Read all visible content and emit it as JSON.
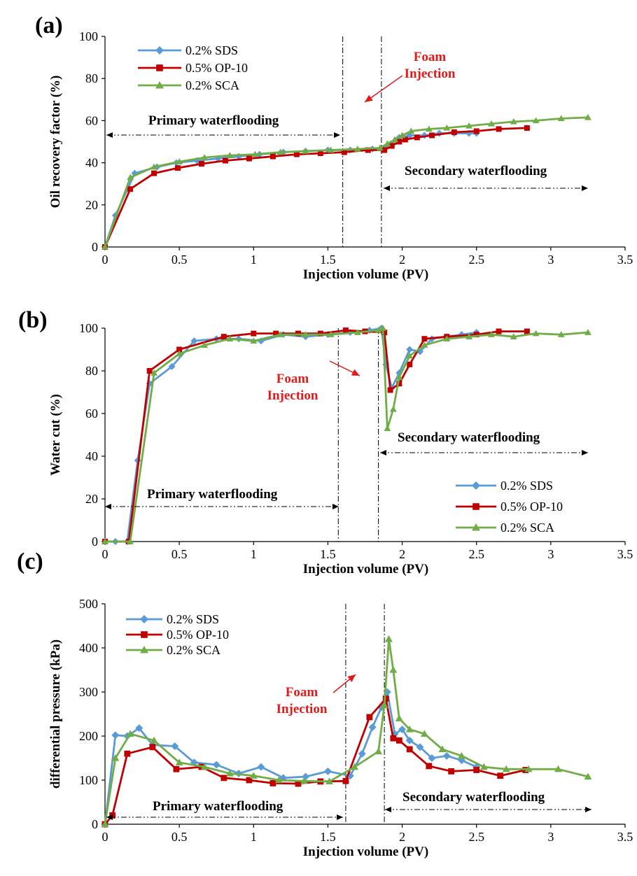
{
  "colors": {
    "SDS": "#5b9bd5",
    "OP-10": "#c00000",
    "SCA": "#70ad47",
    "annotation": "#e01b1b"
  },
  "chart_data": [
    {
      "type": "line",
      "panel_label": "(a)",
      "xlabel": "Injection volume (PV)",
      "ylabel": "Oil recovery factor (%)",
      "xlim": [
        0,
        3.5
      ],
      "ylim": [
        0,
        100
      ],
      "xticks": [
        "0",
        "0.5",
        "1",
        "1.5",
        "2",
        "2.5",
        "3",
        "3.5"
      ],
      "yticks": [
        "0",
        "20",
        "40",
        "60",
        "80",
        "100"
      ],
      "legend_position": "top-left",
      "vlines": [
        1.6,
        1.86
      ],
      "annotations": {
        "foam": [
          "Foam",
          "Injection"
        ],
        "primary": "Primary waterflooding",
        "secondary": "Secondary waterflooding"
      },
      "series": [
        {
          "name": "0.2% SDS",
          "key": "SDS",
          "marker": "diamond",
          "x": [
            0,
            0.07,
            0.2,
            0.35,
            0.48,
            0.62,
            0.76,
            0.9,
            1.04,
            1.2,
            1.35,
            1.5,
            1.65,
            1.8,
            1.88,
            1.93,
            1.98,
            2.05,
            2.15,
            2.25,
            2.35,
            2.45,
            2.5
          ],
          "y": [
            0,
            15,
            35,
            38,
            40,
            41,
            42,
            43,
            44,
            45,
            45.5,
            46,
            46,
            46.5,
            47,
            49,
            52,
            53,
            53,
            54,
            54,
            54,
            54
          ]
        },
        {
          "name": "0.5% OP-10",
          "key": "OP-10",
          "marker": "square",
          "x": [
            0,
            0.17,
            0.33,
            0.49,
            0.65,
            0.81,
            0.97,
            1.13,
            1.29,
            1.45,
            1.61,
            1.77,
            1.88,
            1.93,
            1.98,
            2.02,
            2.1,
            2.2,
            2.35,
            2.5,
            2.65,
            2.84
          ],
          "y": [
            0,
            27.5,
            35,
            37.5,
            39.5,
            41,
            42,
            43,
            44,
            44.5,
            45,
            46,
            46,
            48,
            50,
            51,
            52,
            53,
            54.5,
            55,
            56,
            56.5
          ]
        },
        {
          "name": "0.2% SCA",
          "key": "SCA",
          "marker": "triangle",
          "x": [
            0,
            0.17,
            0.33,
            0.5,
            0.67,
            0.84,
            1.01,
            1.18,
            1.35,
            1.52,
            1.7,
            1.85,
            1.9,
            1.95,
            2.0,
            2.06,
            2.18,
            2.3,
            2.45,
            2.6,
            2.75,
            2.9,
            3.07,
            3.25
          ],
          "y": [
            0,
            33,
            38,
            40.5,
            42.5,
            43.5,
            44,
            45,
            45.5,
            46,
            46.5,
            47,
            49,
            51,
            53,
            55,
            56,
            56.5,
            57.5,
            58.5,
            59.5,
            60,
            61,
            61.5
          ]
        }
      ]
    },
    {
      "type": "line",
      "panel_label": "(b)",
      "xlabel": "Injection volume (PV)",
      "ylabel": "Water cut (%)",
      "xlim": [
        0,
        3.5
      ],
      "ylim": [
        0,
        100
      ],
      "xticks": [
        "0",
        "0.5",
        "1",
        "1.5",
        "2",
        "2.5",
        "3",
        "3.5"
      ],
      "yticks": [
        "0",
        "20",
        "40",
        "60",
        "80",
        "100"
      ],
      "legend_position": "bottom-right",
      "vlines": [
        1.57,
        1.84
      ],
      "annotations": {
        "foam": [
          "Foam",
          "Injection"
        ],
        "primary": "Primary waterflooding",
        "secondary": "Secondary waterflooding"
      },
      "series": [
        {
          "name": "0.2% SDS",
          "key": "SDS",
          "marker": "diamond",
          "x": [
            0,
            0.07,
            0.15,
            0.22,
            0.3,
            0.45,
            0.6,
            0.75,
            0.9,
            1.05,
            1.2,
            1.35,
            1.5,
            1.65,
            1.78,
            1.86,
            1.89,
            1.93,
            1.98,
            2.05,
            2.12,
            2.2,
            2.3,
            2.4,
            2.5
          ],
          "y": [
            0,
            0,
            0,
            38,
            74,
            82,
            94,
            95,
            95,
            94,
            97,
            96,
            97,
            98,
            99,
            100,
            83,
            72,
            79,
            90,
            89,
            95,
            96,
            97,
            98
          ]
        },
        {
          "name": "0.5% OP-10",
          "key": "OP-10",
          "marker": "square",
          "x": [
            0,
            0.16,
            0.3,
            0.5,
            0.8,
            1.0,
            1.15,
            1.3,
            1.45,
            1.62,
            1.75,
            1.88,
            1.92,
            1.98,
            2.05,
            2.15,
            2.3,
            2.5,
            2.65,
            2.84
          ],
          "y": [
            0,
            0,
            80,
            90,
            96,
            97.5,
            97.5,
            97.5,
            97.5,
            99,
            98.5,
            98,
            71,
            74,
            83,
            95,
            96,
            97,
            98.5,
            98.5
          ]
        },
        {
          "name": "0.2% SCA",
          "key": "SCA",
          "marker": "triangle",
          "x": [
            0,
            0.17,
            0.33,
            0.5,
            0.67,
            0.84,
            1.0,
            1.18,
            1.35,
            1.52,
            1.7,
            1.84,
            1.87,
            1.9,
            1.94,
            1.98,
            2.05,
            2.15,
            2.3,
            2.45,
            2.6,
            2.75,
            2.9,
            3.07,
            3.25
          ],
          "y": [
            0,
            0,
            79,
            88,
            92,
            95,
            94,
            97,
            97,
            97,
            98,
            99,
            100,
            53,
            62,
            77,
            87,
            92,
            95,
            96,
            97,
            96,
            97.5,
            97,
            98
          ]
        }
      ]
    },
    {
      "type": "line",
      "panel_label": "(c)",
      "xlabel": "Injection volume (PV)",
      "ylabel": "differential pressure (kPa)",
      "xlim": [
        0,
        3.5
      ],
      "ylim": [
        0,
        500
      ],
      "xticks": [
        "0",
        "0.5",
        "1",
        "1.5",
        "2",
        "2.5",
        "3",
        "3.5"
      ],
      "yticks": [
        "0",
        "100",
        "200",
        "300",
        "400",
        "500"
      ],
      "legend_position": "top-left",
      "vlines": [
        1.62,
        1.88
      ],
      "annotations": {
        "foam": [
          "Foam",
          "Injection"
        ],
        "primary": "Primary waterflooding",
        "secondary": "Secondary waterflooding"
      },
      "series": [
        {
          "name": "0.2% SDS",
          "key": "SDS",
          "marker": "diamond",
          "x": [
            0,
            0.07,
            0.15,
            0.23,
            0.32,
            0.47,
            0.6,
            0.75,
            0.9,
            1.05,
            1.2,
            1.35,
            1.5,
            1.65,
            1.73,
            1.8,
            1.86,
            1.9,
            1.95,
            2.0,
            2.05,
            2.12,
            2.2,
            2.3,
            2.4,
            2.5
          ],
          "y": [
            0,
            202,
            200,
            218,
            180,
            177,
            140,
            135,
            115,
            130,
            105,
            108,
            120,
            110,
            160,
            220,
            265,
            300,
            205,
            215,
            190,
            175,
            150,
            155,
            145,
            130
          ]
        },
        {
          "name": "0.5% OP-10",
          "key": "OP-10",
          "marker": "square",
          "x": [
            0,
            0.05,
            0.15,
            0.32,
            0.48,
            0.65,
            0.8,
            0.97,
            1.13,
            1.3,
            1.45,
            1.62,
            1.78,
            1.89,
            1.94,
            1.98,
            2.05,
            2.18,
            2.33,
            2.5,
            2.66,
            2.83
          ],
          "y": [
            0,
            20,
            160,
            175,
            125,
            130,
            105,
            100,
            93,
            92,
            97,
            98,
            243,
            285,
            195,
            190,
            170,
            132,
            120,
            123,
            110,
            123
          ]
        },
        {
          "name": "0.2% SCA",
          "key": "SCA",
          "marker": "triangle",
          "x": [
            0,
            0.07,
            0.17,
            0.33,
            0.5,
            0.67,
            0.84,
            1.0,
            1.17,
            1.34,
            1.51,
            1.68,
            1.84,
            1.88,
            1.91,
            1.94,
            1.98,
            2.05,
            2.15,
            2.27,
            2.4,
            2.55,
            2.7,
            2.85,
            3.05,
            3.25
          ],
          "y": [
            0,
            150,
            205,
            190,
            140,
            130,
            115,
            110,
            100,
            98,
            97,
            130,
            165,
            270,
            420,
            350,
            240,
            215,
            205,
            170,
            155,
            130,
            125,
            125,
            125,
            108
          ]
        }
      ]
    }
  ]
}
